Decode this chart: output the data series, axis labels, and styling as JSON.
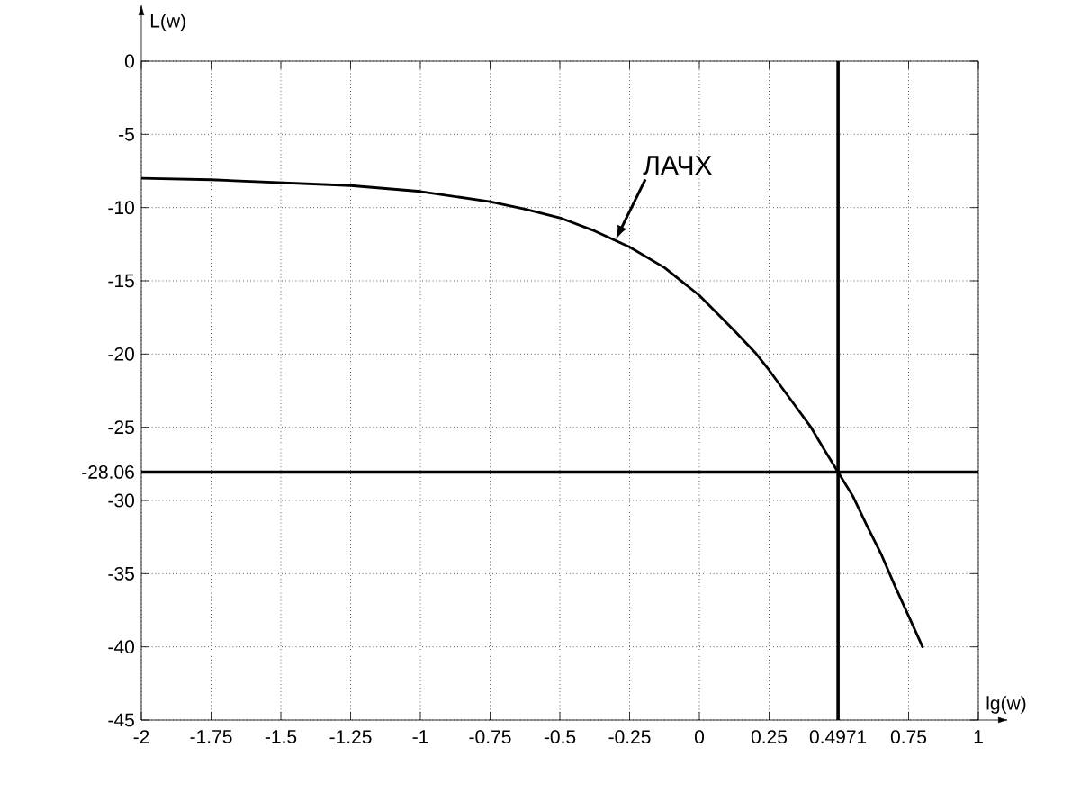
{
  "chart_data": {
    "type": "line",
    "xlabel": "lg(w)",
    "ylabel": "L(w)",
    "x": [
      -2,
      -1.75,
      -1.5,
      -1.25,
      -1,
      -0.75,
      -0.625,
      -0.5,
      -0.375,
      -0.25,
      -0.125,
      0,
      0.125,
      0.2,
      0.25,
      0.3,
      0.35,
      0.4,
      0.45,
      0.4971,
      0.55,
      0.6,
      0.65,
      0.7,
      0.75,
      0.8
    ],
    "series": [
      {
        "color": "#000000",
        "values": [
          -8.0,
          -8.1,
          -8.3,
          -8.5,
          -8.9,
          -9.6,
          -10.1,
          -10.7,
          -11.6,
          -12.7,
          -14.1,
          -16.0,
          -18.4,
          -19.9,
          -21.1,
          -22.4,
          -23.7,
          -25.0,
          -26.6,
          -28.06,
          -29.7,
          -31.7,
          -33.6,
          -35.8,
          -37.9,
          -40
        ]
      }
    ],
    "xlim": [
      -2,
      1
    ],
    "ylim": [
      -45,
      0
    ],
    "xticks": [
      -2,
      -1.75,
      -1.5,
      -1.25,
      -1,
      -0.75,
      -0.5,
      -0.25,
      0,
      0.25,
      0.75,
      1
    ],
    "yticks": [
      -45,
      -40,
      -35,
      -30,
      -25,
      -20,
      -15,
      -10,
      -5,
      0
    ],
    "grid": true,
    "ref_lines": [
      {
        "axis": "x",
        "value": 0.4971,
        "label": "0.4971",
        "color": "#000000"
      },
      {
        "axis": "y",
        "value": -28.06,
        "label": "-28.06",
        "color": "#000000"
      }
    ],
    "annotations": [
      {
        "text": "ЛАЧХ",
        "x": -0.3,
        "y": -12.2
      }
    ]
  }
}
